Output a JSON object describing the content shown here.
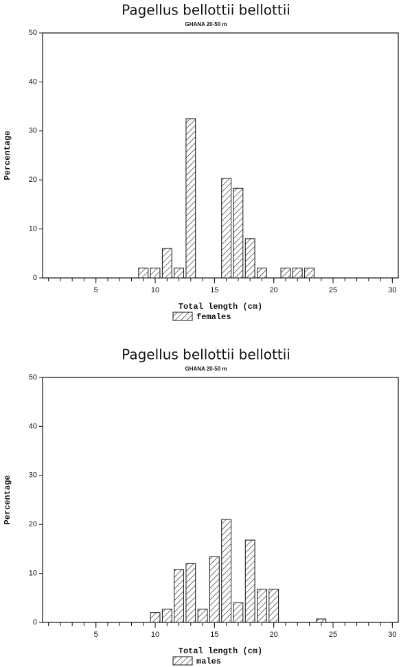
{
  "chart_data": [
    {
      "type": "bar",
      "title": "Pagellus bellottii bellottii",
      "subtitle": "GHANA  20-50 m",
      "x_label": "Total length (cm)",
      "y_label": "Percentage",
      "x": [
        9,
        10,
        11,
        12,
        13,
        16,
        17,
        18,
        19,
        21,
        22,
        23
      ],
      "series": [
        {
          "name": "females",
          "color": "#111111",
          "values": [
            2,
            2,
            6,
            2,
            32.5,
            20.3,
            18.3,
            8,
            2,
            2,
            2,
            2
          ]
        }
      ],
      "xlim": [
        0.5,
        30.5
      ],
      "xticks": [
        5,
        10,
        15,
        20,
        25,
        30
      ],
      "xminorticks": [
        1,
        2,
        3,
        4,
        5,
        6,
        7,
        8,
        9,
        10,
        11,
        12,
        13,
        14,
        15,
        16,
        17,
        18,
        19,
        20,
        21,
        22,
        23,
        24,
        25,
        26,
        27,
        28,
        29,
        30
      ],
      "ylim": [
        0,
        50
      ],
      "yticks": [
        0,
        10,
        20,
        30,
        40,
        50
      ],
      "legend": "bottom",
      "grid": false
    },
    {
      "type": "bar",
      "title": "Pagellus bellottii bellottii",
      "subtitle": "GHANA  20-50 m",
      "x_label": "Total length (cm)",
      "y_label": "Percentage",
      "x": [
        10,
        11,
        12,
        13,
        14,
        15,
        16,
        17,
        18,
        19,
        20,
        24
      ],
      "series": [
        {
          "name": "males",
          "color": "#111111",
          "values": [
            2,
            2.7,
            10.8,
            12,
            2.7,
            13.4,
            21,
            4,
            16.8,
            6.8,
            6.8,
            0.7
          ]
        }
      ],
      "xlim": [
        0.5,
        30.5
      ],
      "xticks": [
        5,
        10,
        15,
        20,
        25,
        30
      ],
      "xminorticks": [
        1,
        2,
        3,
        4,
        5,
        6,
        7,
        8,
        9,
        10,
        11,
        12,
        13,
        14,
        15,
        16,
        17,
        18,
        19,
        20,
        21,
        22,
        23,
        24,
        25,
        26,
        27,
        28,
        29,
        30
      ],
      "ylim": [
        0,
        50
      ],
      "yticks": [
        0,
        10,
        20,
        30,
        40,
        50
      ],
      "legend": "bottom",
      "grid": false
    }
  ]
}
